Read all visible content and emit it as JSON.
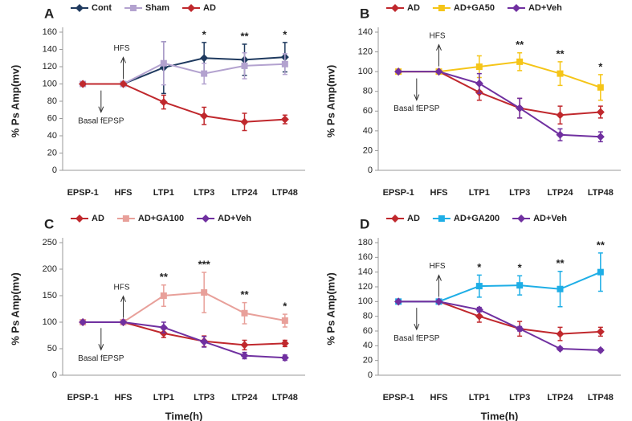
{
  "chart_data": [
    {
      "type": "line",
      "panel": "A",
      "ylabel": "% Ps Amp(mv)",
      "hfs_label": "HFS",
      "baseline_label": "Basal fEPSP",
      "categories": [
        "EPSP-1",
        "HFS",
        "LTP1",
        "LTP3",
        "LTP24",
        "LTP48"
      ],
      "ylim": [
        0,
        160
      ],
      "yticks": [
        0,
        20,
        40,
        60,
        80,
        100,
        120,
        140,
        160
      ],
      "significance": [
        null,
        null,
        null,
        "*",
        "**",
        "*"
      ],
      "series": [
        {
          "name": "Cont",
          "color": "#1f3a5f",
          "marker": "diamond",
          "values": [
            100,
            100,
            119,
            130,
            128,
            131
          ],
          "errors": [
            0,
            0,
            30,
            18,
            18,
            17
          ]
        },
        {
          "name": "Sham",
          "color": "#b3a2cf",
          "marker": "square",
          "values": [
            100,
            100,
            124,
            112,
            121,
            123
          ],
          "errors": [
            2,
            0,
            25,
            12,
            15,
            12
          ]
        },
        {
          "name": "AD",
          "color": "#c0282d",
          "marker": "diamond",
          "values": [
            100,
            100,
            79,
            63,
            56,
            59
          ],
          "errors": [
            2,
            0,
            8,
            10,
            10,
            5
          ]
        }
      ]
    },
    {
      "type": "line",
      "panel": "B",
      "ylabel": "% Ps Amp(mv)",
      "hfs_label": "HFS",
      "baseline_label": "Basal fEPSP",
      "categories": [
        "EPSP-1",
        "HFS",
        "LTP1",
        "LTP3",
        "LTP24",
        "LTP48"
      ],
      "ylim": [
        0,
        140
      ],
      "yticks": [
        0,
        20,
        40,
        60,
        80,
        100,
        120,
        140
      ],
      "significance": [
        null,
        null,
        null,
        "**",
        "**",
        "*"
      ],
      "series": [
        {
          "name": "AD",
          "color": "#c0282d",
          "marker": "diamond",
          "values": [
            100,
            100,
            79,
            63,
            56,
            59
          ],
          "errors": [
            0,
            0,
            8,
            10,
            9,
            6
          ]
        },
        {
          "name": "AD+GA50",
          "color": "#f5c518",
          "marker": "square",
          "values": [
            100,
            100,
            105,
            110,
            98,
            84
          ],
          "errors": [
            2,
            0,
            11,
            9,
            12,
            13
          ]
        },
        {
          "name": "AD+Veh",
          "color": "#7030a0",
          "marker": "diamond",
          "values": [
            100,
            100,
            88,
            63,
            36,
            34
          ],
          "errors": [
            0,
            0,
            10,
            10,
            6,
            5
          ]
        }
      ]
    },
    {
      "type": "line",
      "panel": "C",
      "ylabel": "% Ps Amp(mv)",
      "xlabel": "Time(h)",
      "hfs_label": "HFS",
      "baseline_label": "Basal fEPSP",
      "categories": [
        "EPSP-1",
        "HFS",
        "LTP1",
        "LTP3",
        "LTP24",
        "LTP48"
      ],
      "ylim": [
        0,
        250
      ],
      "yticks": [
        0,
        50,
        100,
        150,
        200,
        250
      ],
      "significance": [
        null,
        null,
        "**",
        "***",
        "**",
        "*"
      ],
      "series": [
        {
          "name": "AD",
          "color": "#c0282d",
          "marker": "diamond",
          "values": [
            100,
            100,
            79,
            64,
            57,
            60
          ],
          "errors": [
            0,
            0,
            8,
            10,
            9,
            6
          ]
        },
        {
          "name": "AD+GA100",
          "color": "#e8a09a",
          "marker": "square",
          "values": [
            100,
            100,
            150,
            156,
            117,
            103
          ],
          "errors": [
            2,
            0,
            20,
            38,
            20,
            12
          ]
        },
        {
          "name": "AD+Veh",
          "color": "#7030a0",
          "marker": "diamond",
          "values": [
            100,
            100,
            90,
            63,
            37,
            33
          ],
          "errors": [
            0,
            0,
            10,
            10,
            6,
            5
          ]
        }
      ]
    },
    {
      "type": "line",
      "panel": "D",
      "ylabel": "% Ps Amp(mv)",
      "xlabel": "Time(h)",
      "hfs_label": "HFS",
      "baseline_label": "Basal fEPSP",
      "categories": [
        "EPSP-1",
        "HFS",
        "LTP1",
        "LTP3",
        "LTP24",
        "LTP48"
      ],
      "ylim": [
        0,
        180
      ],
      "yticks": [
        0,
        20,
        40,
        60,
        80,
        100,
        120,
        140,
        160,
        180
      ],
      "significance": [
        null,
        null,
        "*",
        "*",
        "**",
        "**"
      ],
      "series": [
        {
          "name": "AD",
          "color": "#c0282d",
          "marker": "diamond",
          "values": [
            100,
            100,
            80,
            63,
            56,
            59
          ],
          "errors": [
            0,
            0,
            8,
            10,
            9,
            6
          ]
        },
        {
          "name": "AD+GA200",
          "color": "#1eaee6",
          "marker": "square",
          "values": [
            100,
            100,
            121,
            122,
            117,
            140
          ],
          "errors": [
            2,
            2,
            15,
            13,
            24,
            26
          ]
        },
        {
          "name": "AD+Veh",
          "color": "#7030a0",
          "marker": "diamond",
          "values": [
            100,
            100,
            89,
            63,
            36,
            34
          ],
          "errors": [
            0,
            0,
            3,
            3,
            2,
            2
          ]
        }
      ]
    }
  ]
}
